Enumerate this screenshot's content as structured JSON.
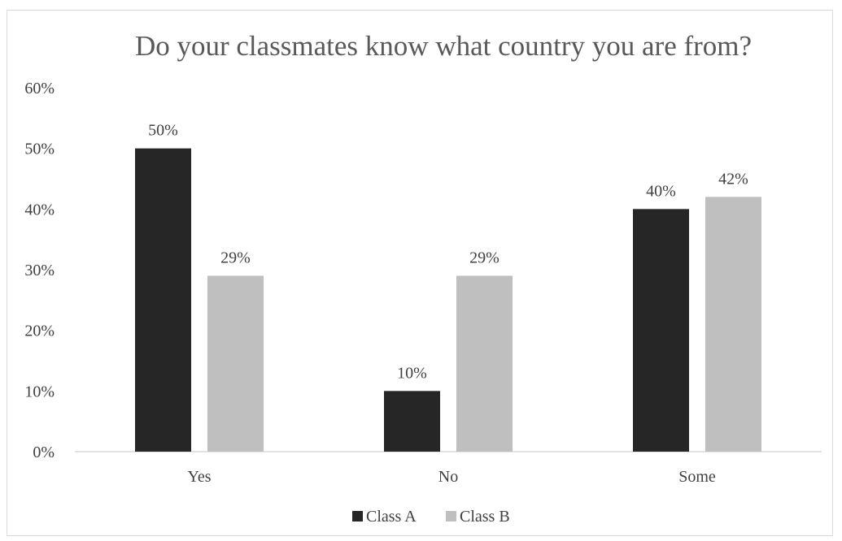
{
  "chart_data": {
    "type": "bar",
    "title": "Do your classmates know what country you are from?",
    "categories": [
      "Yes",
      "No",
      "Some"
    ],
    "series": [
      {
        "name": "Class A",
        "values": [
          50,
          10,
          40
        ],
        "labels": [
          "50%",
          "10%",
          "40%"
        ]
      },
      {
        "name": "Class B",
        "values": [
          29,
          29,
          42
        ],
        "labels": [
          "29%",
          "29%",
          "42%"
        ]
      }
    ],
    "y_ticks": [
      "0%",
      "10%",
      "20%",
      "30%",
      "40%",
      "50%",
      "60%"
    ],
    "ylim": [
      0,
      60
    ],
    "grid": false,
    "legend_position": "bottom"
  },
  "colors": {
    "class_a": "#262626",
    "class_b": "#bfbfbf",
    "axis": "#d9d9d9",
    "text": "#404040",
    "title": "#595959"
  }
}
